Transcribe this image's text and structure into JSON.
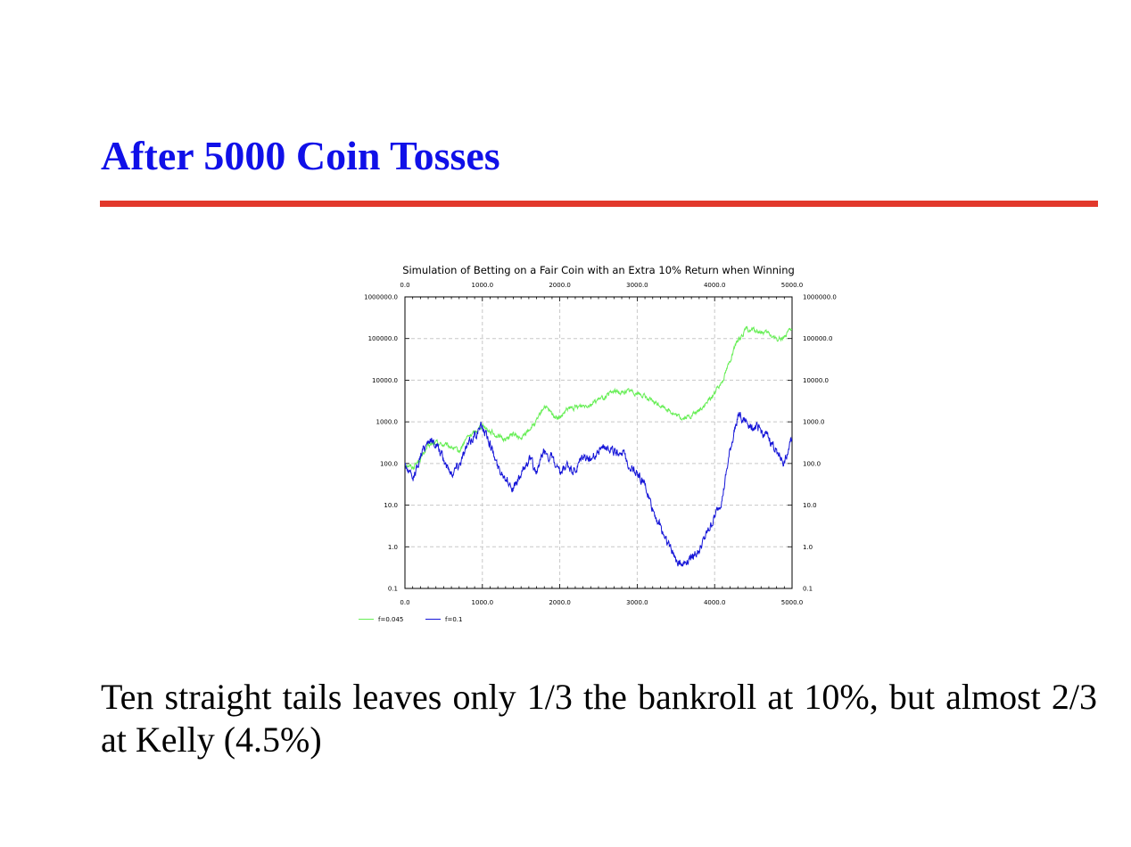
{
  "slide": {
    "title": "After 5000 Coin Tosses",
    "caption": "Ten straight tails leaves only 1/3 the bankroll at 10%, but almost 2/3 at Kelly (4.5%)",
    "colors": {
      "title": "#1010e8",
      "rule": "#e2382b"
    }
  },
  "chart_data": {
    "type": "line",
    "title": "Simulation of Betting on a Fair Coin with an Extra 10% Return when Winning",
    "xlabel": "",
    "ylabel": "",
    "xlim": [
      0,
      5000
    ],
    "ylim": [
      0.1,
      1000000
    ],
    "y_scale": "log",
    "grid": true,
    "legend_position": "bottom-left",
    "x_ticks": [
      "0.0",
      "1000.0",
      "2000.0",
      "3000.0",
      "4000.0",
      "5000.0"
    ],
    "y_ticks": [
      "1000000.0",
      "100000.0",
      "10000.0",
      "1000.0",
      "100.0",
      "10.0",
      "1.0",
      "0.1"
    ],
    "series": [
      {
        "name": "f=0.045",
        "color": "#66ee55",
        "x": [
          0,
          100,
          200,
          300,
          400,
          500,
          600,
          700,
          800,
          900,
          1000,
          1100,
          1200,
          1300,
          1400,
          1500,
          1600,
          1700,
          1800,
          1900,
          2000,
          2100,
          2200,
          2300,
          2400,
          2500,
          2600,
          2700,
          2800,
          2900,
          3000,
          3100,
          3200,
          3300,
          3400,
          3500,
          3600,
          3700,
          3800,
          3900,
          4000,
          4100,
          4200,
          4300,
          4400,
          4500,
          4600,
          4700,
          4800,
          4900,
          5000
        ],
        "y": [
          100,
          80,
          130,
          260,
          320,
          280,
          250,
          190,
          420,
          560,
          850,
          600,
          450,
          380,
          520,
          380,
          650,
          1000,
          2400,
          1500,
          1200,
          2000,
          2200,
          2500,
          2700,
          3400,
          4000,
          5500,
          5000,
          5600,
          5000,
          4000,
          3000,
          2500,
          2000,
          1400,
          1200,
          1400,
          1900,
          2800,
          5000,
          10000,
          30000,
          90000,
          160000,
          160000,
          140000,
          130000,
          95000,
          110000,
          170000
        ]
      },
      {
        "name": "f=0.1",
        "color": "#1515d8",
        "x": [
          0,
          100,
          200,
          300,
          400,
          500,
          600,
          700,
          800,
          900,
          1000,
          1100,
          1200,
          1300,
          1400,
          1500,
          1600,
          1700,
          1800,
          1900,
          2000,
          2100,
          2200,
          2300,
          2400,
          2500,
          2600,
          2700,
          2800,
          2900,
          3000,
          3100,
          3200,
          3300,
          3400,
          3500,
          3600,
          3700,
          3800,
          3900,
          4000,
          4100,
          4200,
          4300,
          4400,
          4500,
          4600,
          4700,
          4800,
          4900,
          5000
        ],
        "y": [
          100,
          40,
          150,
          380,
          300,
          120,
          60,
          100,
          250,
          500,
          800,
          300,
          80,
          50,
          25,
          50,
          140,
          60,
          200,
          130,
          50,
          90,
          60,
          150,
          120,
          200,
          300,
          180,
          200,
          90,
          60,
          30,
          8,
          3,
          1.2,
          0.5,
          0.4,
          0.6,
          0.8,
          2,
          5,
          15,
          200,
          1500,
          1000,
          800,
          600,
          400,
          200,
          100,
          400
        ]
      }
    ]
  }
}
